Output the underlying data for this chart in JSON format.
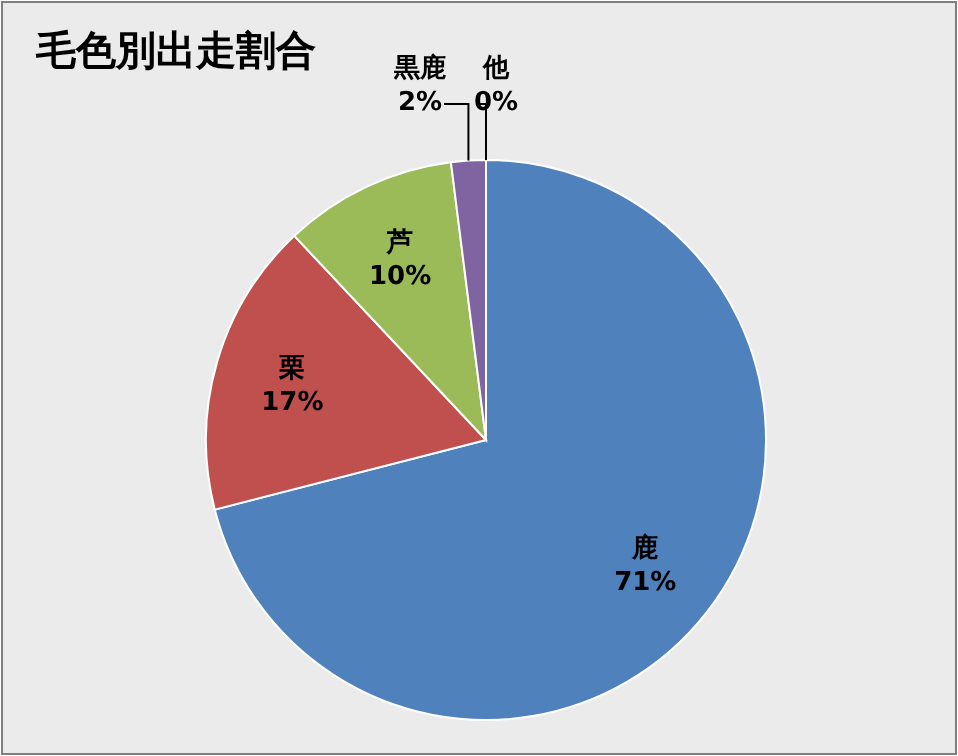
{
  "chart_data": {
    "type": "pie",
    "title": "毛色別出走割合",
    "categories": [
      "鹿",
      "栗",
      "芦",
      "黒鹿",
      "他"
    ],
    "values": [
      71,
      17,
      10,
      2,
      0
    ],
    "colors": [
      "#4f81bd",
      "#c0504d",
      "#9bbb59",
      "#8064a2",
      "#4bacc6"
    ],
    "value_labels": [
      "71%",
      "17%",
      "10%",
      "2%",
      "0%"
    ]
  }
}
